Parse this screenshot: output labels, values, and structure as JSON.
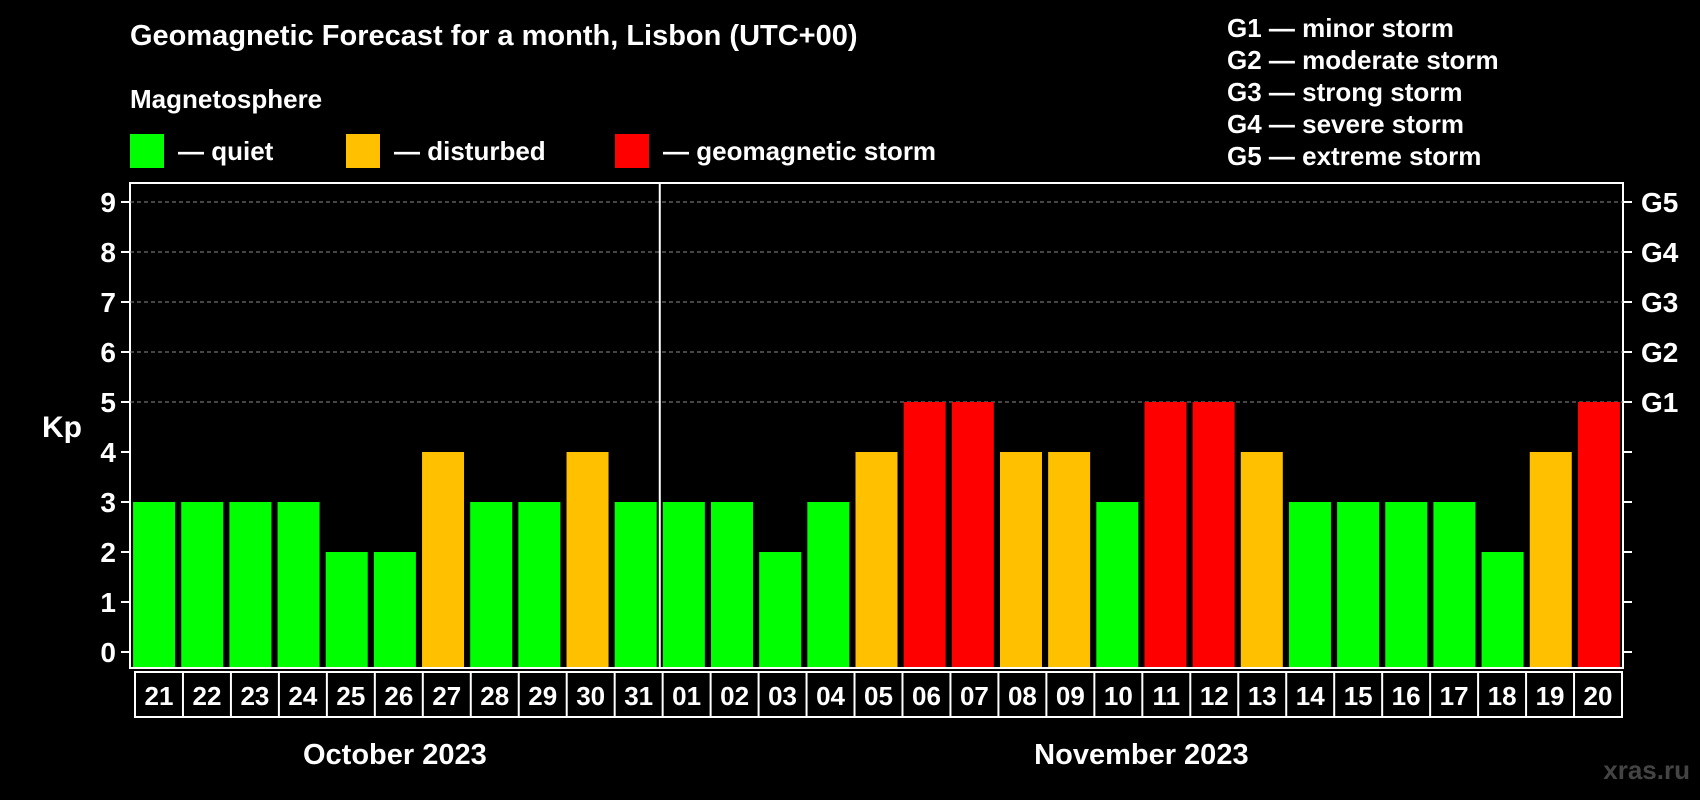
{
  "title": "Geomagnetic Forecast for a month, Lisbon (UTC+00)",
  "section_label": "Magnetosphere",
  "legend": [
    {
      "label": "— quiet",
      "color": "#00ff00"
    },
    {
      "label": "— disturbed",
      "color": "#ffc000"
    },
    {
      "label": "— geomagnetic storm",
      "color": "#ff0000"
    }
  ],
  "storm_scale": [
    "G1 — minor storm",
    "G2 — moderate storm",
    "G3 — strong storm",
    "G4 — severe storm",
    "G5 — extreme storm"
  ],
  "watermark": "xras.ru",
  "chart_data": {
    "type": "bar",
    "ylabel": "Kp",
    "ylim": [
      0,
      9
    ],
    "yticks": [
      0,
      1,
      2,
      3,
      4,
      5,
      6,
      7,
      8,
      9
    ],
    "right_labels": [
      {
        "value": 5,
        "label": "G1"
      },
      {
        "value": 6,
        "label": "G2"
      },
      {
        "value": 7,
        "label": "G3"
      },
      {
        "value": 8,
        "label": "G4"
      },
      {
        "value": 9,
        "label": "G5"
      }
    ],
    "grid": "dashed horizontal at 5–9",
    "categories": [
      "21",
      "22",
      "23",
      "24",
      "25",
      "26",
      "27",
      "28",
      "29",
      "30",
      "31",
      "01",
      "02",
      "03",
      "04",
      "05",
      "06",
      "07",
      "08",
      "09",
      "10",
      "11",
      "12",
      "13",
      "14",
      "15",
      "16",
      "17",
      "18",
      "19",
      "20"
    ],
    "values": [
      3,
      3,
      3,
      3,
      2,
      2,
      4,
      3,
      3,
      4,
      3,
      3,
      3,
      2,
      3,
      4,
      5,
      5,
      4,
      4,
      3,
      5,
      5,
      4,
      3,
      3,
      3,
      3,
      2,
      4,
      5
    ],
    "colors": {
      "quiet": "#00ff00",
      "disturbed": "#ffc000",
      "storm": "#ff0000"
    },
    "months": [
      {
        "label": "October 2023",
        "count": 11
      },
      {
        "label": "November 2023",
        "count": 20
      }
    ]
  }
}
